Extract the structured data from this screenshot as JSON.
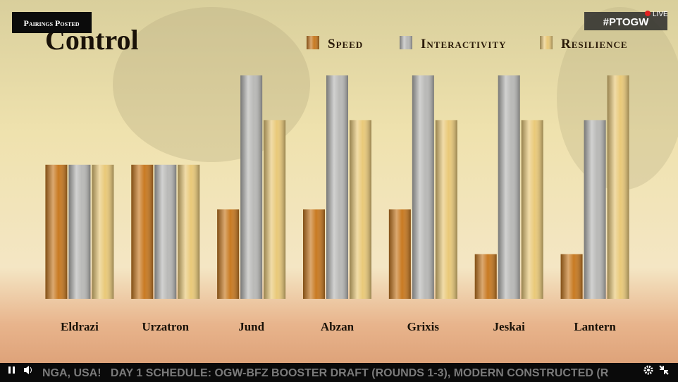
{
  "overlay": {
    "badge": "Pairings Posted",
    "hashtag": "#PTOGW",
    "live": "LIVE",
    "ticker": "NGA, USA!   DAY 1 SCHEDULE: OGW-BFZ BOOSTER DRAFT (ROUNDS 1-3), MODERN CONSTRUCTED (R"
  },
  "chart_data": {
    "type": "bar",
    "title": "Control",
    "categories": [
      "Eldrazi",
      "Urzatron",
      "Jund",
      "Abzan",
      "Grixis",
      "Jeskai",
      "Lantern"
    ],
    "series": [
      {
        "name": "Speed",
        "color": "#c87a22",
        "values": [
          3,
          3,
          2,
          2,
          2,
          1,
          1
        ]
      },
      {
        "name": "Interactivity",
        "color": "#b9b9b7",
        "values": [
          3,
          3,
          5,
          5,
          5,
          5,
          4
        ]
      },
      {
        "name": "Resilience",
        "color": "#e9c979",
        "values": [
          3,
          3,
          4,
          4,
          4,
          4,
          5
        ]
      }
    ],
    "ylim": [
      0,
      5
    ],
    "legend": "top-right"
  }
}
